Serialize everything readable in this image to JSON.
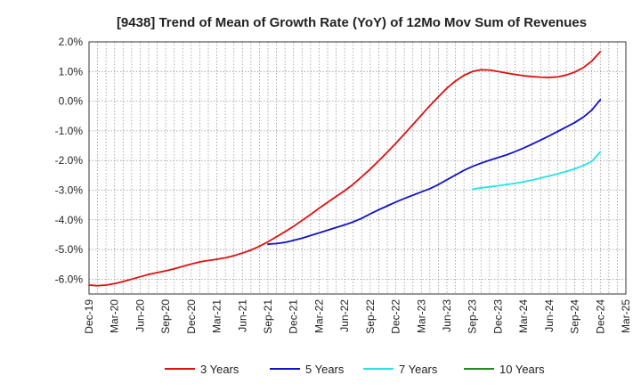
{
  "chart_data": {
    "type": "line",
    "title": "[9438]  Trend of Mean of Growth Rate (YoY) of 12Mo Mov Sum of Revenues",
    "xlabel": "",
    "ylabel": "",
    "ylim": [
      -6.5,
      2.0
    ],
    "yticks": [
      2.0,
      1.0,
      0.0,
      -1.0,
      -2.0,
      -3.0,
      -4.0,
      -5.0,
      -6.0
    ],
    "ytick_labels": [
      "2.0%",
      "1.0%",
      "0.0%",
      "-1.0%",
      "-2.0%",
      "-3.0%",
      "-4.0%",
      "-5.0%",
      "-6.0%"
    ],
    "x_start": "Dec-19",
    "x_end": "Mar-25",
    "x_months_total": 63,
    "x_ticks": [
      {
        "label": "Dec-19",
        "m": 0
      },
      {
        "label": "Mar-20",
        "m": 3
      },
      {
        "label": "Jun-20",
        "m": 6
      },
      {
        "label": "Sep-20",
        "m": 9
      },
      {
        "label": "Dec-20",
        "m": 12
      },
      {
        "label": "Mar-21",
        "m": 15
      },
      {
        "label": "Jun-21",
        "m": 18
      },
      {
        "label": "Sep-21",
        "m": 21
      },
      {
        "label": "Dec-21",
        "m": 24
      },
      {
        "label": "Mar-22",
        "m": 27
      },
      {
        "label": "Jun-22",
        "m": 30
      },
      {
        "label": "Sep-22",
        "m": 33
      },
      {
        "label": "Dec-22",
        "m": 36
      },
      {
        "label": "Mar-23",
        "m": 39
      },
      {
        "label": "Jun-23",
        "m": 42
      },
      {
        "label": "Sep-23",
        "m": 45
      },
      {
        "label": "Dec-23",
        "m": 48
      },
      {
        "label": "Mar-24",
        "m": 51
      },
      {
        "label": "Jun-24",
        "m": 54
      },
      {
        "label": "Sep-24",
        "m": 57
      },
      {
        "label": "Dec-24",
        "m": 60
      },
      {
        "label": "Mar-25",
        "m": 63
      }
    ],
    "grid": true,
    "legend_position": "bottom",
    "series": [
      {
        "name": "3 Years",
        "color": "#dd1111",
        "points": [
          [
            0,
            -6.2
          ],
          [
            1,
            -6.22
          ],
          [
            2,
            -6.2
          ],
          [
            3,
            -6.15
          ],
          [
            4,
            -6.08
          ],
          [
            5,
            -6.0
          ],
          [
            6,
            -5.92
          ],
          [
            7,
            -5.84
          ],
          [
            8,
            -5.78
          ],
          [
            9,
            -5.72
          ],
          [
            10,
            -5.65
          ],
          [
            11,
            -5.57
          ],
          [
            12,
            -5.49
          ],
          [
            13,
            -5.42
          ],
          [
            14,
            -5.37
          ],
          [
            15,
            -5.33
          ],
          [
            16,
            -5.28
          ],
          [
            17,
            -5.21
          ],
          [
            18,
            -5.12
          ],
          [
            19,
            -5.02
          ],
          [
            20,
            -4.89
          ],
          [
            21,
            -4.74
          ],
          [
            22,
            -4.57
          ],
          [
            23,
            -4.4
          ],
          [
            24,
            -4.22
          ],
          [
            25,
            -4.02
          ],
          [
            26,
            -3.82
          ],
          [
            27,
            -3.61
          ],
          [
            28,
            -3.41
          ],
          [
            29,
            -3.21
          ],
          [
            30,
            -3.02
          ],
          [
            31,
            -2.8
          ],
          [
            32,
            -2.55
          ],
          [
            33,
            -2.29
          ],
          [
            34,
            -2.01
          ],
          [
            35,
            -1.72
          ],
          [
            36,
            -1.42
          ],
          [
            37,
            -1.11
          ],
          [
            38,
            -0.79
          ],
          [
            39,
            -0.47
          ],
          [
            40,
            -0.15
          ],
          [
            41,
            0.15
          ],
          [
            42,
            0.44
          ],
          [
            43,
            0.68
          ],
          [
            44,
            0.87
          ],
          [
            45,
            1.0
          ],
          [
            46,
            1.06
          ],
          [
            47,
            1.05
          ],
          [
            48,
            1.0
          ],
          [
            49,
            0.95
          ],
          [
            50,
            0.9
          ],
          [
            51,
            0.86
          ],
          [
            52,
            0.83
          ],
          [
            53,
            0.81
          ],
          [
            54,
            0.8
          ],
          [
            55,
            0.82
          ],
          [
            56,
            0.88
          ],
          [
            57,
            0.98
          ],
          [
            58,
            1.13
          ],
          [
            59,
            1.35
          ],
          [
            60,
            1.67
          ]
        ]
      },
      {
        "name": "5 Years",
        "color": "#1111cc",
        "points": [
          [
            21,
            -4.82
          ],
          [
            22,
            -4.8
          ],
          [
            23,
            -4.76
          ],
          [
            24,
            -4.69
          ],
          [
            25,
            -4.62
          ],
          [
            26,
            -4.53
          ],
          [
            27,
            -4.44
          ],
          [
            28,
            -4.35
          ],
          [
            29,
            -4.26
          ],
          [
            30,
            -4.17
          ],
          [
            31,
            -4.07
          ],
          [
            32,
            -3.95
          ],
          [
            33,
            -3.8
          ],
          [
            34,
            -3.66
          ],
          [
            35,
            -3.53
          ],
          [
            36,
            -3.4
          ],
          [
            37,
            -3.28
          ],
          [
            38,
            -3.17
          ],
          [
            39,
            -3.06
          ],
          [
            40,
            -2.95
          ],
          [
            41,
            -2.81
          ],
          [
            42,
            -2.65
          ],
          [
            43,
            -2.49
          ],
          [
            44,
            -2.33
          ],
          [
            45,
            -2.2
          ],
          [
            46,
            -2.09
          ],
          [
            47,
            -1.99
          ],
          [
            48,
            -1.9
          ],
          [
            49,
            -1.81
          ],
          [
            50,
            -1.7
          ],
          [
            51,
            -1.58
          ],
          [
            52,
            -1.45
          ],
          [
            53,
            -1.31
          ],
          [
            54,
            -1.17
          ],
          [
            55,
            -1.02
          ],
          [
            56,
            -0.87
          ],
          [
            57,
            -0.72
          ],
          [
            58,
            -0.54
          ],
          [
            59,
            -0.3
          ],
          [
            60,
            0.05
          ]
        ]
      },
      {
        "name": "7 Years",
        "color": "#22e5e5",
        "points": [
          [
            45,
            -2.97
          ],
          [
            46,
            -2.92
          ],
          [
            47,
            -2.89
          ],
          [
            48,
            -2.85
          ],
          [
            49,
            -2.81
          ],
          [
            50,
            -2.77
          ],
          [
            51,
            -2.72
          ],
          [
            52,
            -2.66
          ],
          [
            53,
            -2.59
          ],
          [
            54,
            -2.52
          ],
          [
            55,
            -2.45
          ],
          [
            56,
            -2.37
          ],
          [
            57,
            -2.28
          ],
          [
            58,
            -2.17
          ],
          [
            59,
            -2.03
          ],
          [
            60,
            -1.71
          ]
        ]
      },
      {
        "name": "10 Years",
        "color": "#228822",
        "points": []
      }
    ]
  }
}
